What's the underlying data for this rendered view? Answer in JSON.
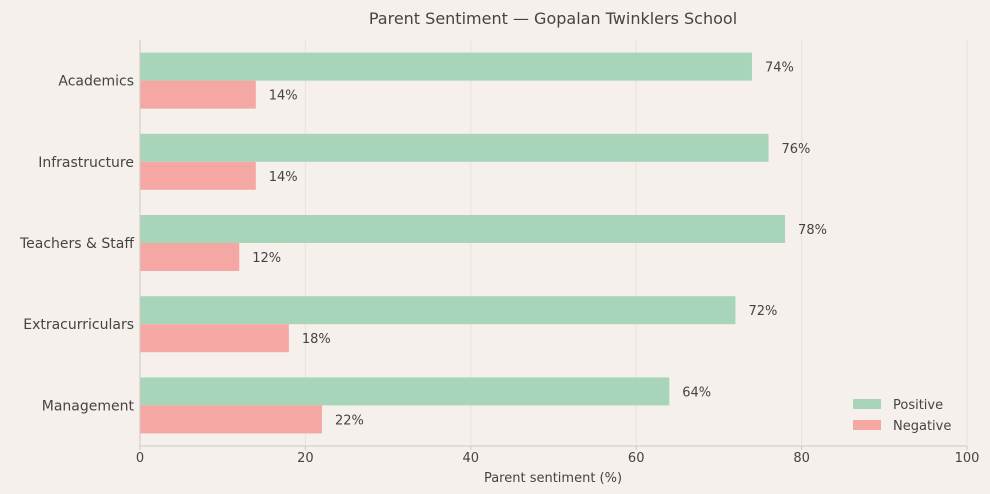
{
  "chart_data": {
    "type": "bar",
    "orientation": "horizontal",
    "title": "Parent Sentiment — Gopalan Twinklers School",
    "xlabel": "Parent sentiment (%)",
    "ylabel": "",
    "xlim": [
      0,
      100
    ],
    "xticks": [
      0,
      20,
      40,
      60,
      80,
      100
    ],
    "grid": true,
    "legend_position": "bottom-right",
    "categories": [
      "Academics",
      "Infrastructure",
      "Teachers & Staff",
      "Extracurriculars",
      "Management"
    ],
    "series": [
      {
        "name": "Positive",
        "color": "#a8d5b9",
        "values": [
          74,
          76,
          78,
          72,
          64
        ],
        "labels": [
          "74%",
          "76%",
          "78%",
          "72%",
          "64%"
        ]
      },
      {
        "name": "Negative",
        "color": "#f4a7a3",
        "values": [
          14,
          14,
          12,
          18,
          22
        ],
        "labels": [
          "14%",
          "14%",
          "12%",
          "18%",
          "22%"
        ]
      }
    ]
  }
}
